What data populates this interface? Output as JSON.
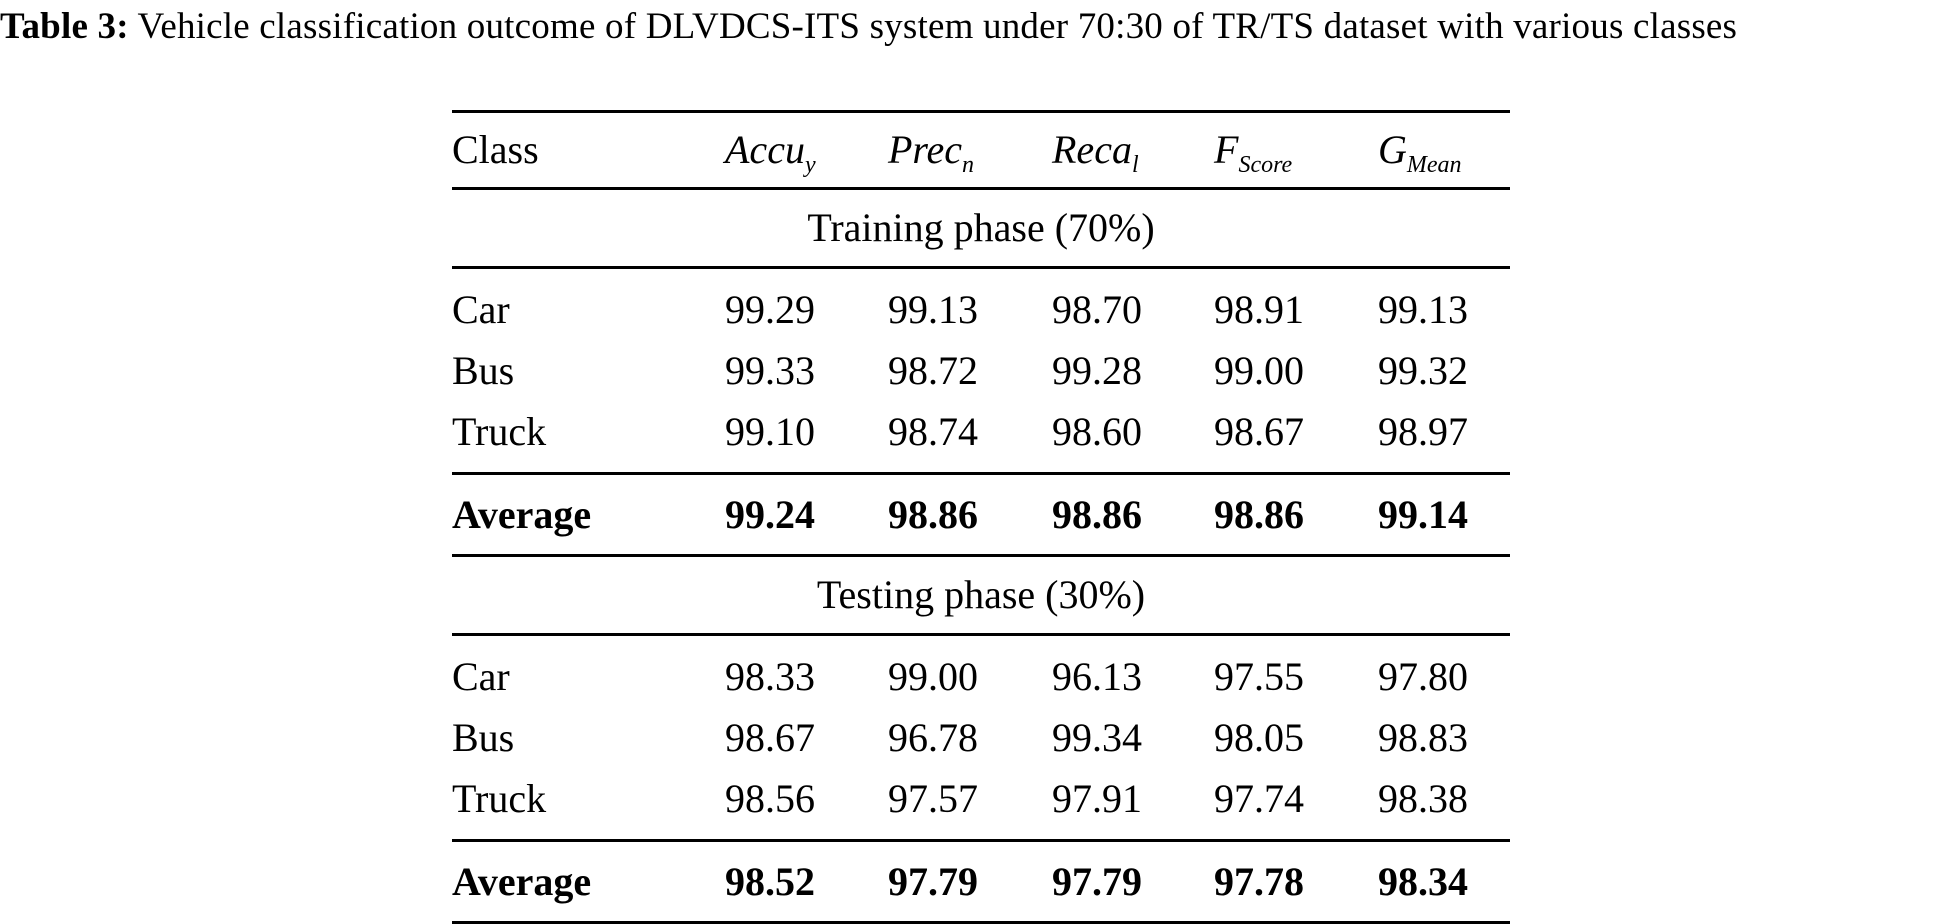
{
  "caption": {
    "label": "Table 3:",
    "text": " Vehicle classification outcome of DLVDCS-ITS system under 70:30 of TR/TS dataset with various classes"
  },
  "table": {
    "headers": {
      "class": "Class",
      "accu_base": "Accu",
      "accu_sub": "y",
      "prec_base": "Prec",
      "prec_sub": "n",
      "reca_base": "Reca",
      "reca_sub": "l",
      "fscore_base": "F",
      "fscore_sub": "Score",
      "gmean_base": "G",
      "gmean_sub": "Mean"
    },
    "training": {
      "title": "Training phase (70%)",
      "rows": [
        [
          "Car",
          "99.29",
          "99.13",
          "98.70",
          "98.91",
          "99.13"
        ],
        [
          "Bus",
          "99.33",
          "98.72",
          "99.28",
          "99.00",
          "99.32"
        ],
        [
          "Truck",
          "99.10",
          "98.74",
          "98.60",
          "98.67",
          "98.97"
        ]
      ],
      "average": [
        "Average",
        "99.24",
        "98.86",
        "98.86",
        "98.86",
        "99.14"
      ]
    },
    "testing": {
      "title": "Testing phase (30%)",
      "rows": [
        [
          "Car",
          "98.33",
          "99.00",
          "96.13",
          "97.55",
          "97.80"
        ],
        [
          "Bus",
          "98.67",
          "96.78",
          "99.34",
          "98.05",
          "98.83"
        ],
        [
          "Truck",
          "98.56",
          "97.57",
          "97.91",
          "97.74",
          "98.38"
        ]
      ],
      "average": [
        "Average",
        "98.52",
        "97.79",
        "97.79",
        "97.78",
        "98.34"
      ]
    }
  }
}
